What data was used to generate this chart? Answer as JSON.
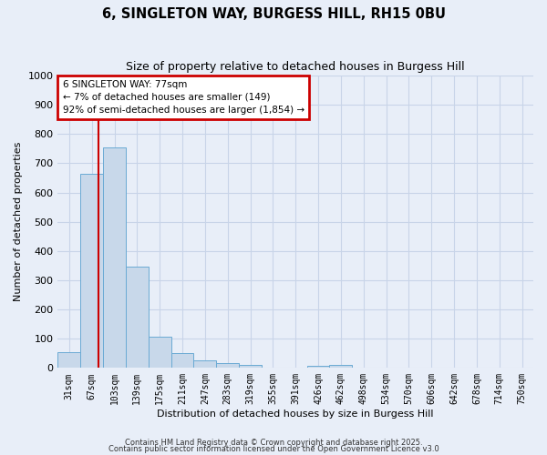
{
  "title1": "6, SINGLETON WAY, BURGESS HILL, RH15 0BU",
  "title2": "Size of property relative to detached houses in Burgess Hill",
  "xlabel": "Distribution of detached houses by size in Burgess Hill",
  "ylabel": "Number of detached properties",
  "bin_labels": [
    "31sqm",
    "67sqm",
    "103sqm",
    "139sqm",
    "175sqm",
    "211sqm",
    "247sqm",
    "283sqm",
    "319sqm",
    "355sqm",
    "391sqm",
    "426sqm",
    "462sqm",
    "498sqm",
    "534sqm",
    "570sqm",
    "606sqm",
    "642sqm",
    "678sqm",
    "714sqm",
    "750sqm"
  ],
  "bar_values": [
    55,
    665,
    755,
    345,
    108,
    50,
    27,
    18,
    10,
    0,
    0,
    7,
    10,
    0,
    0,
    0,
    0,
    0,
    0,
    0,
    0
  ],
  "bar_color": "#c8d8ea",
  "bar_edge_color": "#6aaad4",
  "vline_color": "#cc0000",
  "vline_x": 1.28,
  "annotation_text": "6 SINGLETON WAY: 77sqm\n← 7% of detached houses are smaller (149)\n92% of semi-detached houses are larger (1,854) →",
  "annotation_box_color": "#cc0000",
  "ylim": [
    0,
    1000
  ],
  "yticks": [
    0,
    100,
    200,
    300,
    400,
    500,
    600,
    700,
    800,
    900,
    1000
  ],
  "grid_color": "#c8d4e8",
  "background_color": "#e8eef8",
  "footer1": "Contains HM Land Registry data © Crown copyright and database right 2025.",
  "footer2": "Contains public sector information licensed under the Open Government Licence v3.0"
}
